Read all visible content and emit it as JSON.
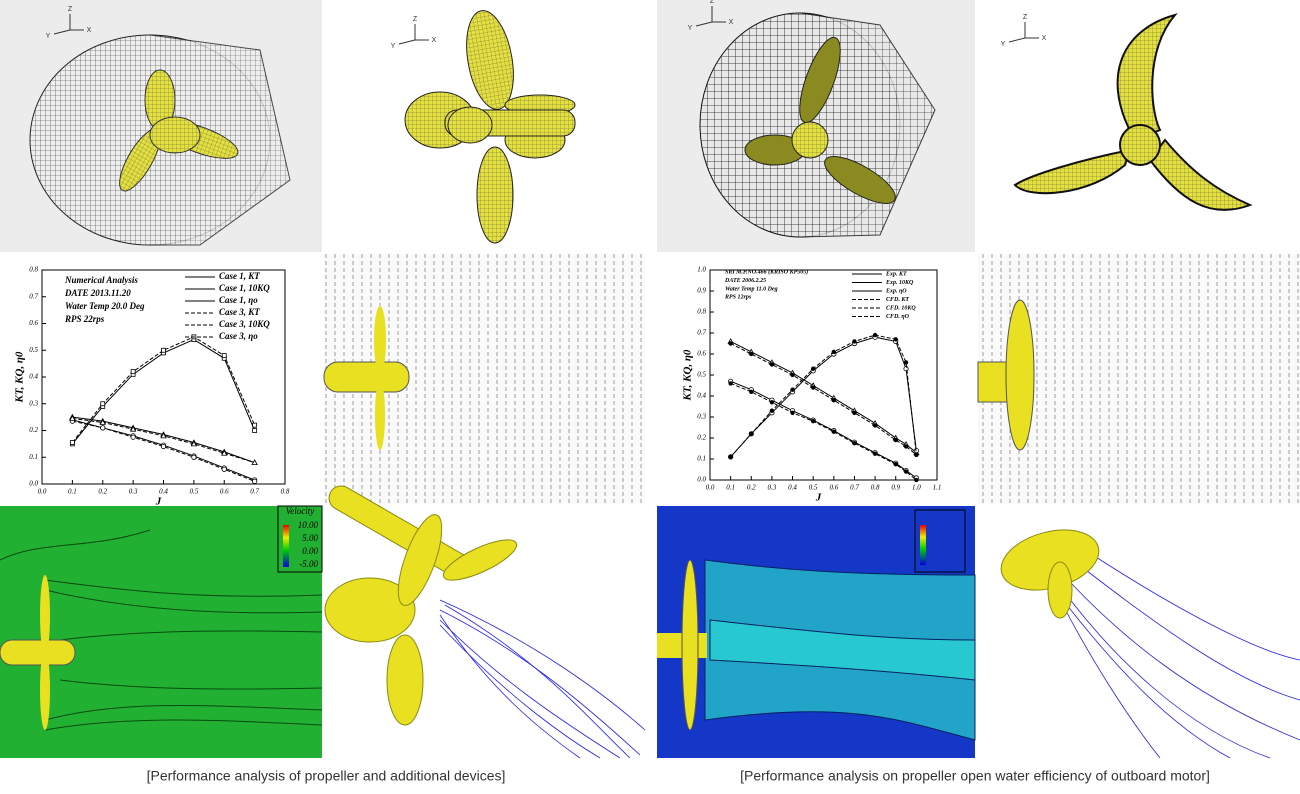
{
  "figures": [
    {
      "caption": "[Performance analysis of propeller and additional devices]",
      "triad_labels": [
        "Z",
        "Y",
        "X"
      ],
      "contour_legend": {
        "title": "Velocity",
        "labels": [
          "10.00",
          "5.00",
          "0.00",
          "-5.00"
        ]
      },
      "chart_data": {
        "type": "line",
        "annotations": [
          "Numerical Analysis",
          "DATE          2013.11.20",
          "Water Temp 20.0 Deg",
          "RPS           22rps"
        ],
        "x_label": "J",
        "y_label": "KT, KQ, η0",
        "xlim": [
          0,
          0.8
        ],
        "ylim": [
          0,
          0.8
        ],
        "xticks": [
          {
            "value": 0,
            "label": "0.0"
          },
          0.1,
          0.2,
          0.3,
          0.4,
          0.5,
          0.6,
          0.7,
          0.8
        ],
        "yticks": [
          {
            "value": 0,
            "label": "0.0"
          },
          0.1,
          0.2,
          0.3,
          0.4,
          0.5,
          0.6,
          0.7,
          0.8
        ],
        "x": [
          0.1,
          0.2,
          0.3,
          0.4,
          0.5,
          0.6,
          0.7
        ],
        "series": [
          {
            "name": "Case 1, KT",
            "color": "#000000",
            "marker": "circle",
            "dashed": false,
            "values": [
              0.24,
              0.21,
              0.18,
              0.145,
              0.105,
              0.06,
              0.015
            ]
          },
          {
            "name": "Case 1, 10KQ",
            "color": "#000000",
            "marker": "triangle",
            "dashed": false,
            "values": [
              0.25,
              0.235,
              0.21,
              0.185,
              0.155,
              0.12,
              0.08
            ]
          },
          {
            "name": "Case 1, ηo",
            "color": "#000000",
            "marker": "square",
            "dashed": false,
            "values": [
              0.15,
              0.29,
              0.41,
              0.49,
              0.54,
              0.47,
              0.2
            ]
          },
          {
            "name": "Case 3, KT",
            "color": "#000000",
            "marker": "circle",
            "dashed": true,
            "values": [
              0.235,
              0.21,
              0.175,
              0.14,
              0.1,
              0.055,
              0.01
            ]
          },
          {
            "name": "Case 3, 10KQ",
            "color": "#000000",
            "marker": "triangle",
            "dashed": true,
            "values": [
              0.245,
              0.23,
              0.205,
              0.18,
              0.15,
              0.115,
              0.08
            ]
          },
          {
            "name": "Case 3, ηo",
            "color": "#000000",
            "marker": "square",
            "dashed": true,
            "values": [
              0.155,
              0.3,
              0.42,
              0.5,
              0.55,
              0.48,
              0.22
            ]
          }
        ]
      }
    },
    {
      "caption": "[Performance analysis on propeller open water efficiency of outboard motor]",
      "triad_labels": [
        "Z",
        "Y",
        "X"
      ],
      "chart_data": {
        "type": "line",
        "annotations": [
          "SRI M.P.NO.466 (KRISO KP505)",
          "DATE          2006.2.25",
          "Water Temp 11.0 Deg",
          "RPS           12rps"
        ],
        "x_label": "J",
        "y_label": "KT, KQ, η0",
        "xlim": [
          0,
          1.1
        ],
        "ylim": [
          0,
          1.0
        ],
        "xticks": [
          {
            "value": 0,
            "label": "0.0"
          },
          0.1,
          0.2,
          0.3,
          0.4,
          0.5,
          0.6,
          0.7,
          0.8,
          0.9,
          {
            "value": 1,
            "label": "1.0"
          },
          1.1
        ],
        "yticks": [
          {
            "value": 0,
            "label": "0.0"
          },
          0.1,
          0.2,
          0.3,
          0.4,
          0.5,
          0.6,
          0.7,
          0.8,
          0.9,
          {
            "value": 1,
            "label": "1.0"
          }
        ],
        "x": [
          0.1,
          0.2,
          0.3,
          0.4,
          0.5,
          0.6,
          0.7,
          0.8,
          0.9,
          0.95,
          1.0
        ],
        "series": [
          {
            "name": "Exp. KT",
            "color": "#000000",
            "marker": "circle",
            "dashed": false,
            "values": [
              0.47,
              0.43,
              0.38,
              0.33,
              0.285,
              0.235,
              0.18,
              0.13,
              0.08,
              0.045,
              0.01
            ]
          },
          {
            "name": "Exp. 10KQ",
            "color": "#000000",
            "marker": "triangle",
            "dashed": false,
            "values": [
              0.66,
              0.61,
              0.56,
              0.51,
              0.45,
              0.39,
              0.33,
              0.27,
              0.2,
              0.17,
              0.13
            ]
          },
          {
            "name": "Exp. ηO",
            "color": "#000000",
            "marker": "circle",
            "dashed": false,
            "values": [
              0.11,
              0.22,
              0.32,
              0.42,
              0.52,
              0.6,
              0.65,
              0.68,
              0.66,
              0.53,
              0.14
            ]
          },
          {
            "name": "CFD. KT",
            "color": "#000000",
            "marker": "dot",
            "dashed": true,
            "values": [
              0.46,
              0.42,
              0.37,
              0.32,
              0.28,
              0.23,
              0.175,
              0.125,
              0.075,
              0.04,
              0.0
            ]
          },
          {
            "name": "CFD. 10KQ",
            "color": "#000000",
            "marker": "dot",
            "dashed": true,
            "values": [
              0.65,
              0.6,
              0.55,
              0.5,
              0.44,
              0.38,
              0.32,
              0.26,
              0.19,
              0.16,
              0.12
            ]
          },
          {
            "name": "CFD. ηO",
            "color": "#000000",
            "marker": "dot",
            "dashed": true,
            "values": [
              0.11,
              0.22,
              0.33,
              0.43,
              0.53,
              0.61,
              0.66,
              0.69,
              0.67,
              0.56,
              0.12
            ]
          }
        ]
      }
    }
  ]
}
